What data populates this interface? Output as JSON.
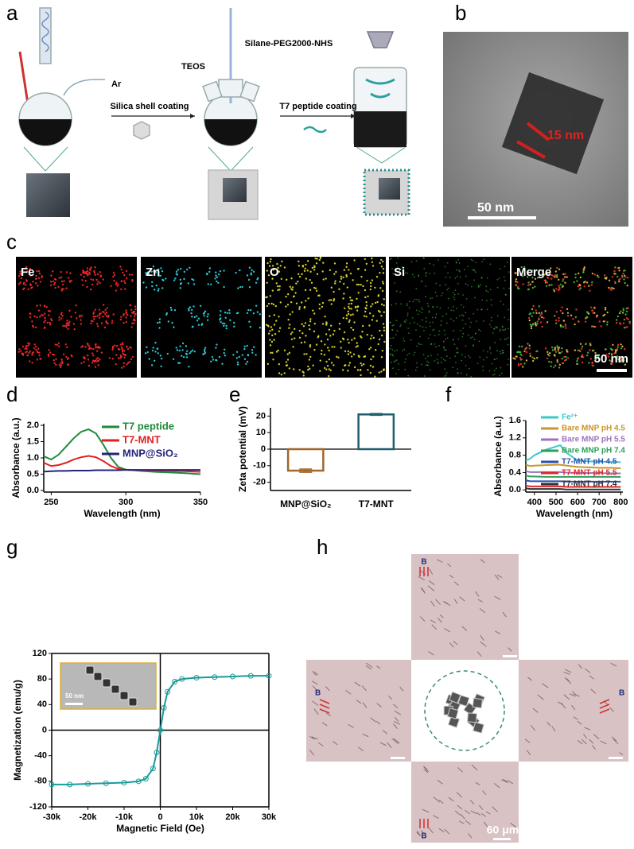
{
  "panel_labels": [
    "a",
    "b",
    "c",
    "d",
    "e",
    "f",
    "g",
    "h"
  ],
  "scheme": {
    "gas": "Ar",
    "step1": "Silica shell coating",
    "reagent1": "TEOS",
    "reagent2": "Silane-PEG2000-NHS",
    "step2": "T7 peptide coating"
  },
  "tem": {
    "size": "15 nm",
    "scale": "50 nm"
  },
  "eds": {
    "maps": [
      "Fe",
      "Zn",
      "O",
      "Si",
      "Merge"
    ],
    "scale": "50 nm"
  },
  "magnet": {
    "field": [
      "B",
      "B",
      "B",
      "B"
    ],
    "scale": "60 μm"
  },
  "chart_data": [
    {
      "type": "line",
      "xlabel": "Wavelength (nm)",
      "ylabel": "Absorbance (a.u.)",
      "x": [
        245,
        250,
        255,
        260,
        265,
        270,
        275,
        280,
        285,
        290,
        295,
        300,
        310,
        320,
        330,
        340,
        350
      ],
      "series": [
        {
          "name": "T7 peptide",
          "color": "#1f8a3a",
          "values": [
            1.05,
            0.95,
            1.1,
            1.35,
            1.6,
            1.8,
            1.88,
            1.75,
            1.4,
            1.0,
            0.72,
            0.64,
            0.6,
            0.57,
            0.55,
            0.53,
            0.5
          ]
        },
        {
          "name": "T7-MNT",
          "color": "#e02020",
          "values": [
            0.85,
            0.75,
            0.78,
            0.85,
            0.95,
            1.02,
            1.06,
            1.02,
            0.9,
            0.75,
            0.66,
            0.63,
            0.62,
            0.61,
            0.6,
            0.59,
            0.57
          ]
        },
        {
          "name": "MNP@SiO₂",
          "color": "#24247a",
          "values": [
            0.58,
            0.59,
            0.6,
            0.6,
            0.61,
            0.61,
            0.61,
            0.62,
            0.62,
            0.62,
            0.62,
            0.63,
            0.63,
            0.63,
            0.63,
            0.63,
            0.63
          ]
        }
      ],
      "xlim": [
        245,
        350
      ],
      "xticks": [
        250,
        300,
        350
      ],
      "ylim": [
        -0.05,
        2.05
      ],
      "yticks": [
        {
          "value": 0,
          "label": "0.0"
        },
        0.5,
        {
          "value": 1,
          "label": "1.0"
        },
        1.5,
        {
          "value": 2,
          "label": "2.0"
        }
      ],
      "legend": "upper right"
    },
    {
      "type": "bar",
      "ylabel": "Zeta potential (mV)",
      "categories": [
        "MNP@SiO₂",
        "T7-MNT"
      ],
      "values": [
        -13,
        21
      ],
      "errors": [
        1,
        0.5
      ],
      "colors": [
        "#a0672a",
        "#1e5e6e"
      ],
      "ylim": [
        -25,
        25
      ],
      "yticks": [
        -20,
        -10,
        0,
        10,
        20
      ]
    },
    {
      "type": "line",
      "xlabel": "Wavelength (nm)",
      "ylabel": "Absorbance (a.u.)",
      "x": [
        360,
        380,
        400,
        450,
        500,
        520,
        550,
        600,
        650,
        700,
        750,
        800
      ],
      "series": [
        {
          "name": "Fe²⁺",
          "color": "#3cc8c8",
          "values": [
            0.68,
            0.72,
            0.8,
            0.92,
            1.0,
            1.03,
            0.85,
            0.68,
            0.66,
            0.65,
            0.65,
            0.64
          ]
        },
        {
          "name": "Bare MNP pH 4.5",
          "color": "#c8962a",
          "values": [
            0.58,
            0.55,
            0.56,
            0.57,
            0.58,
            0.58,
            0.56,
            0.53,
            0.52,
            0.51,
            0.51,
            0.5
          ]
        },
        {
          "name": "Bare MNP pH 5.5",
          "color": "#a070c0",
          "values": [
            0.43,
            0.41,
            0.41,
            0.41,
            0.41,
            0.41,
            0.4,
            0.39,
            0.39,
            0.39,
            0.38,
            0.38
          ]
        },
        {
          "name": "Bare MNP pH 7.4",
          "color": "#2aa05a",
          "values": [
            0.33,
            0.31,
            0.31,
            0.3,
            0.3,
            0.3,
            0.3,
            0.3,
            0.3,
            0.3,
            0.3,
            0.3
          ]
        },
        {
          "name": "T7-MNT pH 4.5",
          "color": "#2a50b0",
          "values": [
            0.22,
            0.2,
            0.2,
            0.2,
            0.2,
            0.2,
            0.19,
            0.19,
            0.19,
            0.19,
            0.19,
            0.19
          ]
        },
        {
          "name": "T7-MNT pH 5.5",
          "color": "#e02828",
          "values": [
            0.1,
            0.08,
            0.08,
            0.08,
            0.08,
            0.08,
            0.07,
            0.07,
            0.07,
            0.07,
            0.07,
            0.07
          ]
        },
        {
          "name": "T7-MNT pH 7.4",
          "color": "#333333",
          "values": [
            0.04,
            0.02,
            0.02,
            0.02,
            0.02,
            0.02,
            0.01,
            0.01,
            0.01,
            0.01,
            0.01,
            0.01
          ]
        }
      ],
      "xlim": [
        360,
        810
      ],
      "xticks": [
        400,
        500,
        600,
        700,
        800
      ],
      "ylim": [
        -0.05,
        1.6
      ],
      "yticks": [
        {
          "value": 0,
          "label": "0.0"
        },
        0.4,
        0.8,
        1.2,
        1.6
      ],
      "legend": "upper right"
    },
    {
      "type": "line",
      "xlabel": "Magnetic Field (Oe)",
      "ylabel": "Magnetization (emu/g)",
      "x": [
        -30000,
        -25000,
        -20000,
        -15000,
        -10000,
        -6000,
        -4000,
        -2000,
        -1000,
        0,
        1000,
        2000,
        4000,
        6000,
        10000,
        15000,
        20000,
        25000,
        30000
      ],
      "series": [
        {
          "name": null,
          "color": "#1a9a9a",
          "values": [
            -85,
            -85,
            -84,
            -83,
            -82,
            -80,
            -76,
            -60,
            -35,
            0,
            35,
            60,
            76,
            80,
            82,
            83,
            84,
            85,
            85
          ]
        }
      ],
      "xlim": [
        -30000,
        30000
      ],
      "xticks": [
        {
          "value": -30000,
          "label": "-30k"
        },
        {
          "value": -20000,
          "label": "-20k"
        },
        {
          "value": -10000,
          "label": "-10k"
        },
        0,
        {
          "value": 10000,
          "label": "10k"
        },
        {
          "value": 20000,
          "label": "20k"
        },
        {
          "value": 30000,
          "label": "30k"
        }
      ],
      "ylim": [
        -120,
        120
      ],
      "yticks": [
        -120,
        -80,
        -40,
        0,
        40,
        80,
        120
      ],
      "markers": true,
      "inset_scale": "50 nm"
    }
  ]
}
